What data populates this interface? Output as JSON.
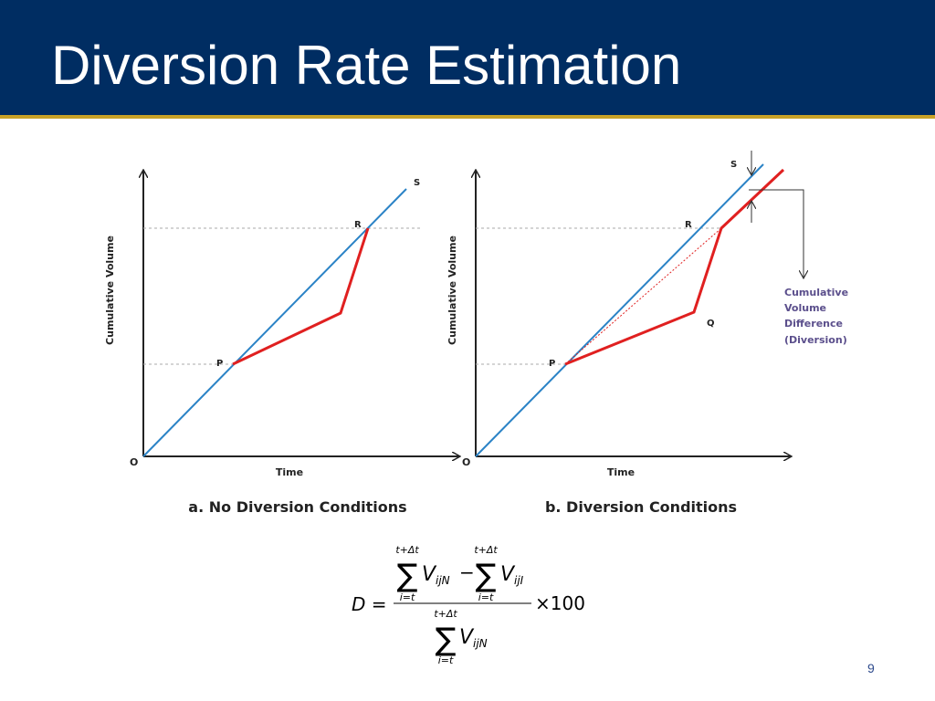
{
  "slide": {
    "title": "Diversion Rate Estimation",
    "page_number": "9"
  },
  "colors": {
    "header_bg": "#002d62",
    "header_rule": "#c9a227",
    "line_s": "#2b83c6",
    "line_prq": "#e02020",
    "label_purple": "#5b4f8c"
  },
  "diagram_a": {
    "y_axis_label": "Cumulative Volume",
    "x_axis_label": "Time",
    "origin_label": "O",
    "point_p": "P",
    "point_r": "R",
    "line_s_label": "S",
    "caption": "a. No Diversion Conditions"
  },
  "diagram_b": {
    "y_axis_label": "Cumulative Volume",
    "x_axis_label": "Time",
    "origin_label": "O",
    "point_p": "P",
    "point_q": "Q",
    "point_r": "R",
    "line_s_label": "S",
    "caption": "b. Diversion Conditions",
    "annotation_lines": [
      "Cumulative",
      "Volume",
      "Difference",
      "(Diversion)"
    ]
  },
  "formula": {
    "lhs": "D =",
    "sum_upper": "t+Δt",
    "sum_lower": "i=t",
    "sigma": "∑",
    "var_v": "V",
    "sub_ijn": "ijN",
    "sub_iji": "ijI",
    "minus": "−",
    "times_100": "×100"
  }
}
